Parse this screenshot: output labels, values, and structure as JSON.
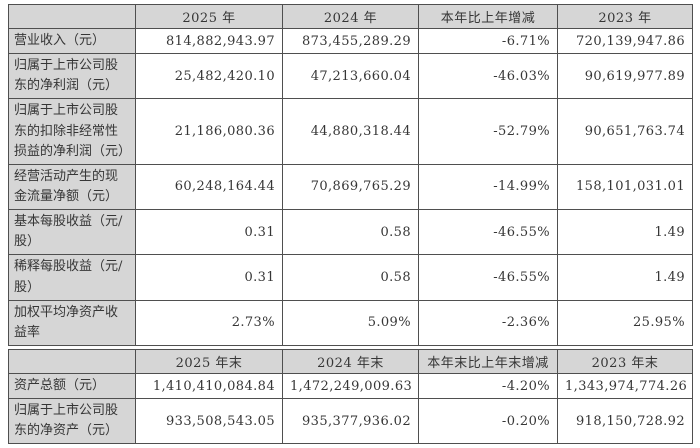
{
  "colors": {
    "border": "#4f4f4f",
    "header_background": "#d6d6d6",
    "cell_background": "#ffffff",
    "text": "#363636",
    "page_background": "#ffffff"
  },
  "s1": {
    "headers": [
      "",
      "2025 年",
      "2024 年",
      "本年比上年增减",
      "2023 年"
    ],
    "rows": [
      {
        "label": "营业收入（元）",
        "values": [
          "814,882,943.97",
          "873,455,289.29",
          "-6.71%",
          "720,139,947.86"
        ]
      },
      {
        "label": "归属于上市公司股东的净利润（元）",
        "values": [
          "25,482,420.10",
          "47,213,660.04",
          "-46.03%",
          "90,619,977.89"
        ]
      },
      {
        "label": "归属于上市公司股东的扣除非经常性损益的净利润（元）",
        "values": [
          "21,186,080.36",
          "44,880,318.44",
          "-52.79%",
          "90,651,763.74"
        ]
      },
      {
        "label": "经营活动产生的现金流量净额（元）",
        "values": [
          "60,248,164.44",
          "70,869,765.29",
          "-14.99%",
          "158,101,031.01"
        ]
      },
      {
        "label": "基本每股收益（元/股）",
        "values": [
          "0.31",
          "0.58",
          "-46.55%",
          "1.49"
        ]
      },
      {
        "label": "稀释每股收益（元/股）",
        "values": [
          "0.31",
          "0.58",
          "-46.55%",
          "1.49"
        ]
      },
      {
        "label": "加权平均净资产收益率",
        "values": [
          "2.73%",
          "5.09%",
          "-2.36%",
          "25.95%"
        ]
      }
    ]
  },
  "s2": {
    "headers": [
      "",
      "2025 年末",
      "2024 年末",
      "本年末比上年末增减",
      "2023 年末"
    ],
    "rows": [
      {
        "label": "资产总额（元）",
        "values": [
          "1,410,410,084.84",
          "1,472,249,009.63",
          "-4.20%",
          "1,343,974,774.26"
        ]
      },
      {
        "label": "归属于上市公司股东的净资产（元）",
        "values": [
          "933,508,543.05",
          "935,377,936.02",
          "-0.20%",
          "918,150,728.92"
        ]
      }
    ]
  }
}
